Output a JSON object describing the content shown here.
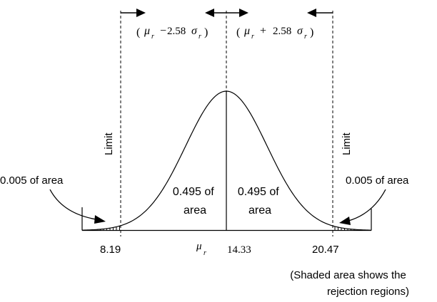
{
  "interval_labels": {
    "left": {
      "open": "(",
      "mu": "μ",
      "mu_sub": "r",
      "minus": "−",
      "coef": "2.58",
      "sigma": "σ",
      "sigma_sub": "r",
      "close": ")"
    },
    "right": {
      "open": "(",
      "mu": "μ",
      "mu_sub": "r",
      "plus": "+",
      "coef": "2.58",
      "sigma": "σ",
      "sigma_sub": "r",
      "close": ")"
    }
  },
  "limit_label": "Limit",
  "tail_label": "0.005 of area",
  "center_label": {
    "line1": "0.495 of",
    "line2": "area"
  },
  "axis_values": {
    "left": "8.19",
    "center": "14.33",
    "right": "20.47"
  },
  "axis_mean": {
    "symbol": "μ",
    "sub": "r"
  },
  "note": {
    "line1": "(Shaded area shows the",
    "line2": "rejection regions)"
  }
}
